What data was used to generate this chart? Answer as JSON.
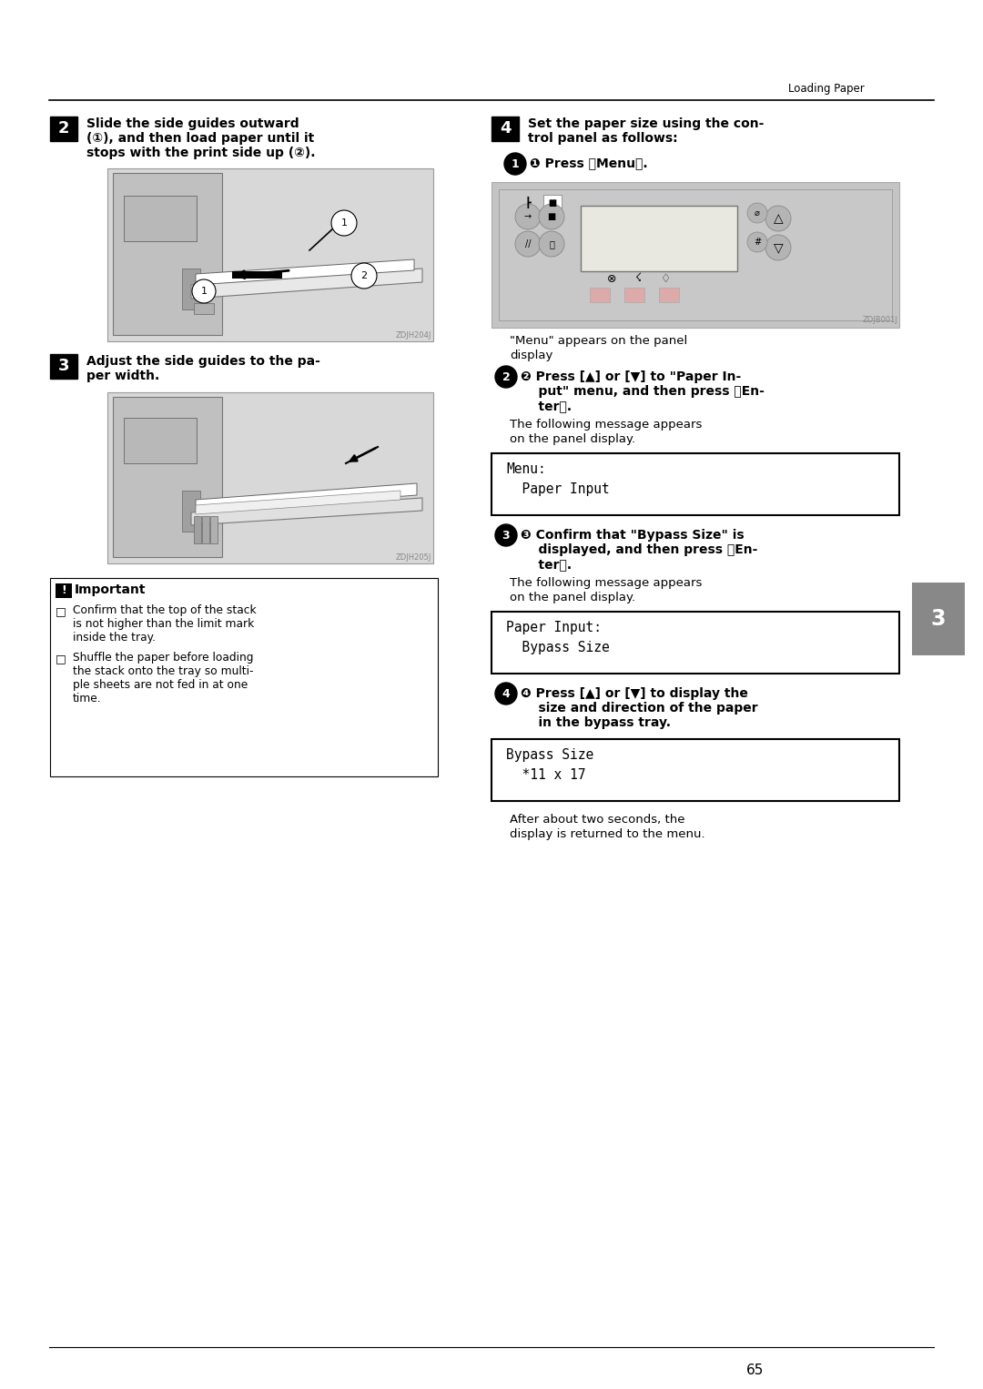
{
  "page_bg": "#ffffff",
  "header_text": "Loading Paper",
  "page_number": "65",
  "tab_label": "3",
  "step2_l1": "Slide the side guides outward",
  "step2_l2": "(①), and then load paper until it",
  "step2_l3": "stops with the print side up (②).",
  "step3_l1": "Adjust the side guides to the pa-",
  "step3_l2": "per width.",
  "step4_l1": "Set the paper size using the con-",
  "step4_l2": "trol panel as follows:",
  "sub1_bold": "❶ Press 【Menu】.",
  "menu_appears1": "\"Menu\" appears on the panel",
  "menu_appears2": "display",
  "sub2_l1": "❷ Press [▲] or [▼] to \"Paper In-",
  "sub2_l2": "    put\" menu, and then press 【En-",
  "sub2_l3": "    ter】.",
  "following1": "The following message appears",
  "following2": "on the panel display.",
  "lcd1_l1": "Menu:",
  "lcd1_l2": "  Paper Input",
  "sub3_l1": "❸ Confirm that \"Bypass Size\" is",
  "sub3_l2": "    displayed, and then press 【En-",
  "sub3_l3": "    ter】.",
  "following3": "The following message appears",
  "following4": "on the panel display.",
  "lcd2_l1": "Paper Input:",
  "lcd2_l2": "  Bypass Size",
  "sub4_l1": "❹ Press [▲] or [▼] to display the",
  "sub4_l2": "    size and direction of the paper",
  "sub4_l3": "    in the bypass tray.",
  "lcd3_l1": "Bypass Size",
  "lcd3_l2": "  *11 x 17",
  "after1": "After about two seconds, the",
  "after2": "display is returned to the menu.",
  "imp_title": "Important",
  "imp1_l1": "Confirm that the top of the stack",
  "imp1_l2": "is not higher than the limit mark",
  "imp1_l3": "inside the tray.",
  "imp2_l1": "Shuffle the paper before loading",
  "imp2_l2": "the stack onto the tray so multi-",
  "imp2_l3": "ple sheets are not fed in at one",
  "imp2_l4": "time.",
  "cap1": "ZDJH204J",
  "cap2": "ZDJH205J",
  "cap3": "ZDJB001J",
  "img_bg": "#d8d8d8",
  "printer_body": "#c0c0c0",
  "printer_dark": "#909090",
  "paper_color": "#f0f0f0",
  "lcd_bg": "#e8e8e0",
  "tab_color": "#888888"
}
